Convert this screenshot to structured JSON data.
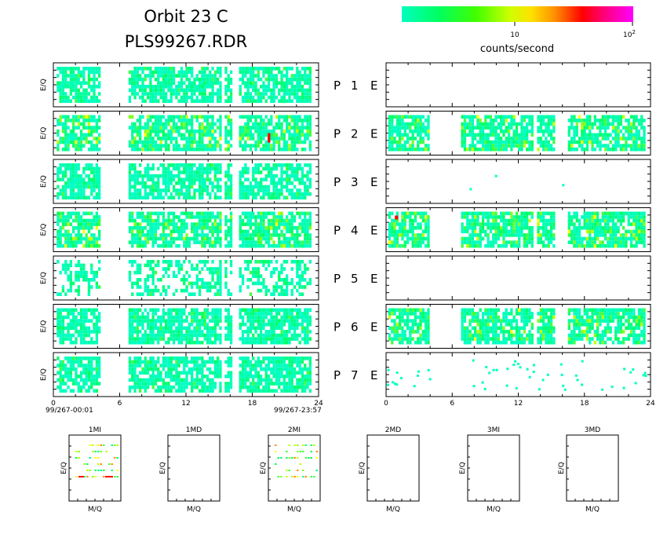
{
  "header": {
    "title_line1": "Orbit 23 C",
    "title_line2": "PLS99267.RDR"
  },
  "colorbar": {
    "label": "counts/second",
    "tick_10": "10",
    "tick_100_base": "10",
    "tick_100_exp": "2",
    "scale": "log",
    "range": [
      1,
      100
    ],
    "colors": [
      "#00ffc0",
      "#00ff40",
      "#80ff00",
      "#ffff00",
      "#ff8000",
      "#ff0000",
      "#ff00a0",
      "#ff00ff"
    ]
  },
  "axis": {
    "ylabel": "E/Q",
    "xticks": [
      "0",
      "6",
      "12",
      "18",
      "24"
    ],
    "start_time": "99/267-00:01",
    "end_time": "99/267-23:57"
  },
  "panels": [
    {
      "p": "P",
      "n": "1",
      "e": "E"
    },
    {
      "p": "P",
      "n": "2",
      "e": "E"
    },
    {
      "p": "P",
      "n": "3",
      "e": "E"
    },
    {
      "p": "P",
      "n": "4",
      "e": "E"
    },
    {
      "p": "P",
      "n": "5",
      "e": "E"
    },
    {
      "p": "P",
      "n": "6",
      "e": "E"
    },
    {
      "p": "P",
      "n": "7",
      "e": "E"
    }
  ],
  "mass_plots": [
    {
      "title": "1MI",
      "xlabel": "M/Q",
      "ylabel": "E/Q"
    },
    {
      "title": "1MD",
      "xlabel": "M/Q",
      "ylabel": "E/Q"
    },
    {
      "title": "2MI",
      "xlabel": "M/Q",
      "ylabel": "E/Q"
    },
    {
      "title": "2MD",
      "xlabel": "M/Q",
      "ylabel": "E/Q"
    },
    {
      "title": "3MI",
      "xlabel": "M/Q",
      "ylabel": "E/Q"
    },
    {
      "title": "3MD",
      "xlabel": "M/Q",
      "ylabel": "E/Q"
    }
  ],
  "chart_data": {
    "type": "heatmap",
    "xlim": [
      0,
      24
    ],
    "x_unit": "hours",
    "gap_hours": [
      [
        4.2,
        6.8
      ]
    ],
    "left_panels_coverage": [
      [
        0.3,
        4.2
      ],
      [
        6.8,
        15.2
      ],
      [
        15.5,
        16.2
      ],
      [
        16.8,
        23.3
      ]
    ],
    "right_panels": {
      "P1": "empty",
      "P2": "filled",
      "P3": "sparse",
      "P4": "filled",
      "P5": "empty",
      "P6": "filled",
      "P7": "sparse"
    },
    "notable_peaks": [
      {
        "panel": "P2 P",
        "x_hours": 19.5,
        "level": "red"
      },
      {
        "panel": "P4 E",
        "x_hours": 0.8,
        "level": "red"
      }
    ]
  }
}
